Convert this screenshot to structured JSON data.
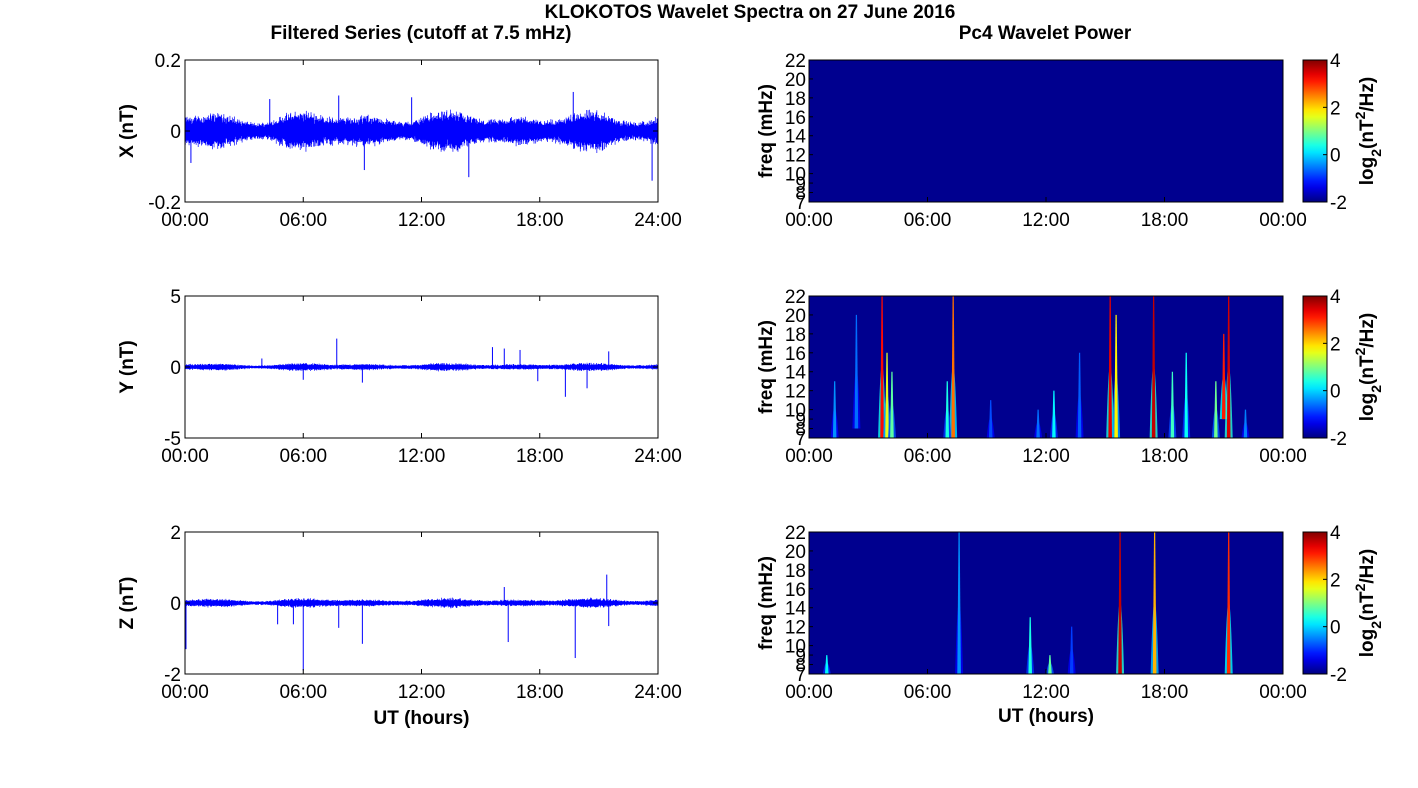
{
  "figure": {
    "title": "KLOKOTOS Wavelet Spectra on 27 June 2016",
    "left_title": "Filtered Series (cutoff at 7.5 mHz)",
    "right_title": "Pc4 Wavelet Power",
    "colors": {
      "series_line": "#0000ff",
      "spectrum_background": "#00008f"
    }
  },
  "chart_data": [
    {
      "type": "line",
      "panel": "X",
      "ylabel": "X (nT)",
      "xlabel": "",
      "x_ticks": [
        "00:00",
        "06:00",
        "12:00",
        "18:00",
        "24:00"
      ],
      "xlim_hours": [
        0,
        24
      ],
      "ylim": [
        -0.2,
        0.2
      ],
      "y_ticks": [
        "-0.2",
        "0",
        "0.2"
      ],
      "noise_amplitude": 0.05,
      "spikes": [
        {
          "t": 4.3,
          "v": 0.09
        },
        {
          "t": 7.8,
          "v": 0.1
        },
        {
          "t": 11.5,
          "v": 0.095
        },
        {
          "t": 14.4,
          "v": -0.13
        },
        {
          "t": 19.7,
          "v": 0.11
        },
        {
          "t": 23.7,
          "v": -0.14
        },
        {
          "t": 0.3,
          "v": -0.09
        },
        {
          "t": 9.1,
          "v": -0.11
        }
      ]
    },
    {
      "type": "line",
      "panel": "Y",
      "ylabel": "Y (nT)",
      "xlabel": "",
      "x_ticks": [
        "00:00",
        "06:00",
        "12:00",
        "18:00",
        "24:00"
      ],
      "xlim_hours": [
        0,
        24
      ],
      "ylim": [
        -5,
        5
      ],
      "y_ticks": [
        "-5",
        "0",
        "5"
      ],
      "noise_amplitude": 0.25,
      "spikes": [
        {
          "t": 3.9,
          "v": 0.6
        },
        {
          "t": 7.7,
          "v": 2.0
        },
        {
          "t": 9.0,
          "v": -1.1
        },
        {
          "t": 15.6,
          "v": 1.4
        },
        {
          "t": 16.2,
          "v": 1.3
        },
        {
          "t": 17.0,
          "v": 1.2
        },
        {
          "t": 17.9,
          "v": -1.0
        },
        {
          "t": 19.3,
          "v": -2.1
        },
        {
          "t": 20.4,
          "v": -1.5
        },
        {
          "t": 21.5,
          "v": 1.1
        },
        {
          "t": 6.0,
          "v": -0.9
        }
      ]
    },
    {
      "type": "line",
      "panel": "Z",
      "ylabel": "Z (nT)",
      "xlabel": "UT (hours)",
      "x_ticks": [
        "00:00",
        "06:00",
        "12:00",
        "18:00",
        "24:00"
      ],
      "xlim_hours": [
        0,
        24
      ],
      "ylim": [
        -2,
        2
      ],
      "y_ticks": [
        "-2",
        "0",
        "2"
      ],
      "noise_amplitude": 0.12,
      "spikes": [
        {
          "t": 0.05,
          "v": -1.3
        },
        {
          "t": 4.7,
          "v": -0.6
        },
        {
          "t": 6.0,
          "v": -1.9
        },
        {
          "t": 7.8,
          "v": -0.7
        },
        {
          "t": 9.0,
          "v": -1.15
        },
        {
          "t": 16.2,
          "v": 0.45
        },
        {
          "t": 16.4,
          "v": -1.1
        },
        {
          "t": 19.8,
          "v": -1.55
        },
        {
          "t": 21.4,
          "v": 0.8
        },
        {
          "t": 21.5,
          "v": -0.65
        },
        {
          "t": 5.5,
          "v": -0.6
        }
      ]
    },
    {
      "type": "heatmap",
      "panel": "X",
      "ylabel": "freq (mHz)",
      "xlabel": "",
      "x_ticks": [
        "00:00",
        "06:00",
        "12:00",
        "18:00",
        "00:00"
      ],
      "xlim_hours": [
        0,
        24
      ],
      "ylim_mHz": [
        7,
        22
      ],
      "y_ticks": [
        "7",
        "8",
        "9",
        "10",
        "12",
        "14",
        "16",
        "18",
        "20",
        "22"
      ],
      "colorbar": {
        "label_base": "log",
        "label_sub": "2",
        "label_open": "(nT",
        "label_sup": "2",
        "label_close": "/Hz)",
        "range": [
          -2,
          4
        ],
        "ticks": [
          "-2",
          "0",
          "2",
          "4"
        ]
      },
      "streaks": []
    },
    {
      "type": "heatmap",
      "panel": "Y",
      "ylabel": "freq (mHz)",
      "xlabel": "",
      "x_ticks": [
        "00:00",
        "06:00",
        "12:00",
        "18:00",
        "00:00"
      ],
      "xlim_hours": [
        0,
        24
      ],
      "ylim_mHz": [
        7,
        22
      ],
      "y_ticks": [
        "7",
        "8",
        "9",
        "10",
        "12",
        "14",
        "16",
        "18",
        "20",
        "22"
      ],
      "colorbar": {
        "label_base": "log",
        "label_sub": "2",
        "label_open": "(nT",
        "label_sup": "2",
        "label_close": "/Hz)",
        "range": [
          -2,
          4
        ],
        "ticks": [
          "-2",
          "0",
          "2",
          "4"
        ]
      },
      "streaks": [
        {
          "t": 3.7,
          "power": 3.2,
          "fmin": 7,
          "fmax": 22
        },
        {
          "t": 3.95,
          "power": 1.6,
          "fmin": 7,
          "fmax": 16
        },
        {
          "t": 4.2,
          "power": 0.8,
          "fmin": 7,
          "fmax": 14
        },
        {
          "t": 1.3,
          "power": -0.4,
          "fmin": 7,
          "fmax": 13
        },
        {
          "t": 2.4,
          "power": -0.6,
          "fmin": 8,
          "fmax": 20
        },
        {
          "t": 7.3,
          "power": 2.6,
          "fmin": 7,
          "fmax": 22
        },
        {
          "t": 7.0,
          "power": 0.4,
          "fmin": 7,
          "fmax": 13
        },
        {
          "t": 9.2,
          "power": -0.8,
          "fmin": 7,
          "fmax": 11
        },
        {
          "t": 12.4,
          "power": 0.2,
          "fmin": 7,
          "fmax": 12
        },
        {
          "t": 11.6,
          "power": -0.6,
          "fmin": 7,
          "fmax": 10
        },
        {
          "t": 13.7,
          "power": -0.7,
          "fmin": 7,
          "fmax": 16
        },
        {
          "t": 15.25,
          "power": 3.4,
          "fmin": 7,
          "fmax": 22
        },
        {
          "t": 15.55,
          "power": 1.8,
          "fmin": 7,
          "fmax": 20
        },
        {
          "t": 17.45,
          "power": 3.6,
          "fmin": 7,
          "fmax": 22
        },
        {
          "t": 18.4,
          "power": 0.6,
          "fmin": 7,
          "fmax": 14
        },
        {
          "t": 19.1,
          "power": 0.3,
          "fmin": 7,
          "fmax": 16
        },
        {
          "t": 20.6,
          "power": 0.9,
          "fmin": 7,
          "fmax": 13
        },
        {
          "t": 21.0,
          "power": 3.1,
          "fmin": 9,
          "fmax": 18
        },
        {
          "t": 21.25,
          "power": 3.5,
          "fmin": 7,
          "fmax": 22
        },
        {
          "t": 22.1,
          "power": -0.5,
          "fmin": 7,
          "fmax": 10
        }
      ]
    },
    {
      "type": "heatmap",
      "panel": "Z",
      "ylabel": "freq (mHz)",
      "xlabel": "UT (hours)",
      "x_ticks": [
        "00:00",
        "06:00",
        "12:00",
        "18:00",
        "00:00"
      ],
      "xlim_hours": [
        0,
        24
      ],
      "ylim_mHz": [
        7,
        22
      ],
      "y_ticks": [
        "7",
        "8",
        "9",
        "10",
        "12",
        "14",
        "16",
        "18",
        "20",
        "22"
      ],
      "colorbar": {
        "label_base": "log",
        "label_sub": "2",
        "label_open": "(nT",
        "label_sup": "2",
        "label_close": "/Hz)",
        "range": [
          -2,
          4
        ],
        "ticks": [
          "-2",
          "0",
          "2",
          "4"
        ]
      },
      "streaks": [
        {
          "t": 0.9,
          "power": 0.2,
          "fmin": 7,
          "fmax": 9
        },
        {
          "t": 7.6,
          "power": -0.4,
          "fmin": 7,
          "fmax": 22
        },
        {
          "t": 11.2,
          "power": 0.4,
          "fmin": 7,
          "fmax": 13
        },
        {
          "t": 12.2,
          "power": 0.8,
          "fmin": 7,
          "fmax": 9
        },
        {
          "t": 15.75,
          "power": 3.6,
          "fmin": 7,
          "fmax": 22
        },
        {
          "t": 17.5,
          "power": 2.2,
          "fmin": 7,
          "fmax": 22
        },
        {
          "t": 21.25,
          "power": 3.0,
          "fmin": 7,
          "fmax": 22
        },
        {
          "t": 13.3,
          "power": -0.9,
          "fmin": 7,
          "fmax": 12
        }
      ]
    }
  ]
}
